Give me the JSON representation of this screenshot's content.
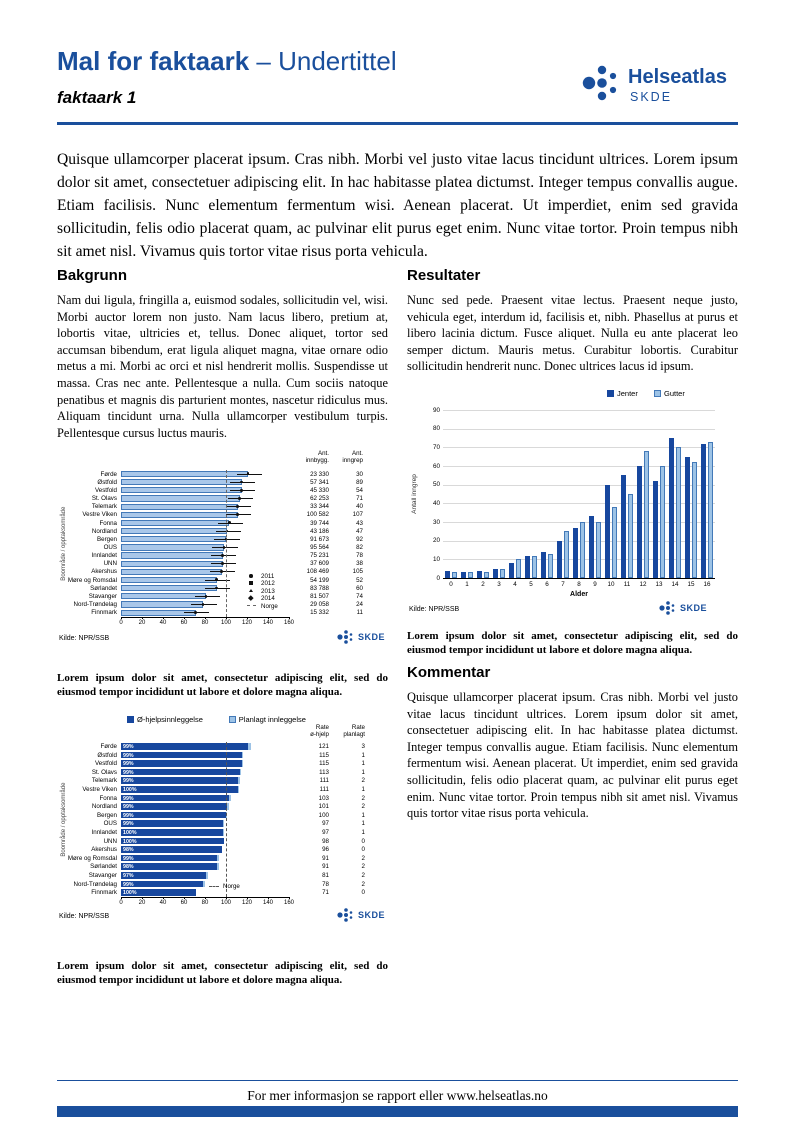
{
  "page": {
    "title_bold": "Mal for faktaark",
    "title_rest": " – Undertittel",
    "subtitle": "faktaark 1",
    "logo": {
      "brand": "Helseatlas",
      "org": "SKDE"
    },
    "footer": "For mer informasjon se rapport eller www.helseatlas.no"
  },
  "intro": "Quisque ullamcorper placerat ipsum. Cras nibh. Morbi vel justo vitae lacus tincidunt ultrices. Lorem ipsum dolor sit amet, consectetuer adipiscing elit. In hac habitasse platea dictumst. Integer tempus convallis augue. Etiam facilisis. Nunc elementum fermentum wisi. Aenean placerat. Ut imperdiet, enim sed gravida sollicitudin, felis odio placerat quam, ac pulvinar elit purus eget enim. Nunc vitae tortor. Proin tempus nibh sit amet nisl. Vivamus quis tortor vitae risus porta vehicula.",
  "sections": {
    "bakgrunn": {
      "heading": "Bakgrunn",
      "body": "Nam dui ligula, fringilla a, euismod sodales, sollicitudin vel, wisi. Morbi auctor lorem non justo. Nam lacus libero, pretium at, lobortis vitae, ultricies et, tellus. Donec aliquet, tortor sed accumsan bibendum, erat ligula aliquet magna, vitae ornare odio metus a mi. Morbi ac orci et nisl hendrerit mollis. Suspendisse ut massa. Cras nec ante. Pellentesque a nulla. Cum sociis natoque penatibus et magnis dis parturient montes, nascetur ridiculus mus. Aliquam tincidunt urna. Nulla ullamcorper vestibulum turpis. Pellentesque cursus luctus mauris."
    },
    "resultater": {
      "heading": "Resultater",
      "body": "Nunc sed pede. Praesent vitae lectus. Praesent neque justo, vehicula eget, interdum id, facilisis et, nibh. Phasellus at purus et libero lacinia dictum. Fusce aliquet. Nulla eu ante placerat leo semper dictum. Mauris metus. Curabitur lobortis. Curabitur sollicitudin hendrerit nunc. Donec ultrices lacus id ipsum."
    },
    "kommentar": {
      "heading": "Kommentar",
      "body": "Quisque ullamcorper placerat ipsum. Cras nibh. Morbi vel justo vitae lacus tincidunt ultrices. Lorem ipsum dolor sit amet, consectetuer adipiscing elit. In hac habitasse platea dictumst. Integer tempus convallis augue. Etiam facilisis. Nunc elementum fermentum wisi. Aenean placerat. Ut imperdiet, enim sed gravida sollicitudin, felis odio placerat quam, ac pulvinar elit purus eget enim. Nunc vitae tortor. Proin tempus nibh sit amet nisl. Vivamus quis tortor vitae risus porta vehicula."
    }
  },
  "captions": {
    "chart1": "Lorem ipsum dolor sit amet, consectetur adipiscing elit, sed do eiusmod tempor incididunt ut labore et dolore magna aliqua.",
    "chart2": "Lorem ipsum dolor sit amet, consectetur adipiscing elit, sed do eiusmod tempor incididunt ut labore et dolore magna aliqua.",
    "chart3": "Lorem ipsum dolor sit amet, consectetur adipiscing elit, sed do eiusmod tempor incididunt ut labore et dolore magna aliqua."
  },
  "colors": {
    "brand": "#1A4F9C",
    "bar_dark": "#17479E",
    "bar_light": "#A9C7E9",
    "bar_light2": "#9DC3E6",
    "bar_border": "#4379B8"
  },
  "chart_data": [
    {
      "type": "bar",
      "orientation": "horizontal",
      "ylabel": "Boområde / opptaksområde",
      "xlim": [
        0,
        160
      ],
      "xticks": [
        0,
        20,
        40,
        60,
        80,
        100,
        120,
        140,
        160
      ],
      "col_headers": [
        "Ant.\ninnbygg.",
        "Ant.\ninngrep"
      ],
      "legend": [
        "2011",
        "2012",
        "2013",
        "2014",
        "Norge"
      ],
      "norge_ref": 100,
      "source": "Kilde: NPR/SSB",
      "rows": [
        {
          "label": "Førde",
          "rate": 121,
          "innbygg": "23 330",
          "inngrep": "30"
        },
        {
          "label": "Østfold",
          "rate": 115,
          "innbygg": "57 341",
          "inngrep": "89"
        },
        {
          "label": "Vestfold",
          "rate": 115,
          "innbygg": "45 330",
          "inngrep": "54"
        },
        {
          "label": "St. Olavs",
          "rate": 113,
          "innbygg": "62 253",
          "inngrep": "71"
        },
        {
          "label": "Telemark",
          "rate": 111,
          "innbygg": "33 344",
          "inngrep": "40"
        },
        {
          "label": "Vestre Viken",
          "rate": 111,
          "innbygg": "100 582",
          "inngrep": "107"
        },
        {
          "label": "Fonna",
          "rate": 103,
          "innbygg": "39 744",
          "inngrep": "43"
        },
        {
          "label": "Nordland",
          "rate": 101,
          "innbygg": "43 186",
          "inngrep": "47"
        },
        {
          "label": "Bergen",
          "rate": 100,
          "innbygg": "91 673",
          "inngrep": "92"
        },
        {
          "label": "OUS",
          "rate": 98,
          "innbygg": "95 564",
          "inngrep": "82"
        },
        {
          "label": "Innlandet",
          "rate": 97,
          "innbygg": "75 231",
          "inngrep": "78"
        },
        {
          "label": "UNN",
          "rate": 97,
          "innbygg": "37 609",
          "inngrep": "38"
        },
        {
          "label": "Akershus",
          "rate": 96,
          "innbygg": "108 469",
          "inngrep": "105"
        },
        {
          "label": "Møre og Romsdal",
          "rate": 91,
          "innbygg": "54 199",
          "inngrep": "52"
        },
        {
          "label": "Sørlandet",
          "rate": 91,
          "innbygg": "83 788",
          "inngrep": "60"
        },
        {
          "label": "Stavanger",
          "rate": 81,
          "innbygg": "81 507",
          "inngrep": "74"
        },
        {
          "label": "Nord-Trøndelag",
          "rate": 78,
          "innbygg": "29 058",
          "inngrep": "24"
        },
        {
          "label": "Finnmark",
          "rate": 71,
          "innbygg": "15 332",
          "inngrep": "11"
        }
      ]
    },
    {
      "type": "bar",
      "categories": [
        "0",
        "1",
        "2",
        "3",
        "4",
        "5",
        "6",
        "7",
        "8",
        "9",
        "10",
        "11",
        "12",
        "13",
        "14",
        "15",
        "16"
      ],
      "series": [
        {
          "name": "Jenter",
          "values": [
            4,
            3,
            4,
            5,
            8,
            12,
            14,
            20,
            27,
            33,
            50,
            55,
            60,
            52,
            75,
            65,
            72
          ]
        },
        {
          "name": "Gutter",
          "values": [
            3,
            3,
            3,
            5,
            10,
            12,
            13,
            25,
            30,
            30,
            38,
            45,
            68,
            60,
            70,
            62,
            73
          ]
        }
      ],
      "xlabel": "Alder",
      "ylabel": "Antall inngrep",
      "ylim": [
        0,
        90
      ],
      "yticks": [
        0,
        10,
        20,
        30,
        40,
        50,
        60,
        70,
        80,
        90
      ],
      "grid": true,
      "legend_position": "top-right",
      "source": "Kilde: NPR/SSB"
    },
    {
      "type": "bar",
      "orientation": "horizontal",
      "stacked": true,
      "legend": [
        "Ø-hjelpsinnleggelse",
        "Planlagt innleggelse"
      ],
      "ylabel": "Boområde / opptaksområde",
      "xlim": [
        0,
        160
      ],
      "xticks": [
        0,
        20,
        40,
        60,
        80,
        100,
        120,
        140,
        160
      ],
      "col_headers": [
        "Rate\nø-hjelp",
        "Rate\nplanlagt"
      ],
      "norge_label": "Norge",
      "norge_ref": 100,
      "source": "Kilde: NPR/SSB",
      "rows": [
        {
          "label": "Førde",
          "pct": "99%",
          "ohjelp": 121,
          "planlagt": 3
        },
        {
          "label": "Østfold",
          "pct": "99%",
          "ohjelp": 115,
          "planlagt": 1
        },
        {
          "label": "Vestfold",
          "pct": "99%",
          "ohjelp": 115,
          "planlagt": 1
        },
        {
          "label": "St. Olavs",
          "pct": "99%",
          "ohjelp": 113,
          "planlagt": 1
        },
        {
          "label": "Telemark",
          "pct": "99%",
          "ohjelp": 111,
          "planlagt": 2
        },
        {
          "label": "Vestre Viken",
          "pct": "100%",
          "ohjelp": 111,
          "planlagt": 1
        },
        {
          "label": "Fonna",
          "pct": "99%",
          "ohjelp": 103,
          "planlagt": 2
        },
        {
          "label": "Nordland",
          "pct": "99%",
          "ohjelp": 101,
          "planlagt": 2
        },
        {
          "label": "Bergen",
          "pct": "99%",
          "ohjelp": 100,
          "planlagt": 1
        },
        {
          "label": "OUS",
          "pct": "99%",
          "ohjelp": 97,
          "planlagt": 1
        },
        {
          "label": "Innlandet",
          "pct": "100%",
          "ohjelp": 97,
          "planlagt": 1
        },
        {
          "label": "UNN",
          "pct": "100%",
          "ohjelp": 98,
          "planlagt": 0
        },
        {
          "label": "Akershus",
          "pct": "98%",
          "ohjelp": 96,
          "planlagt": 0
        },
        {
          "label": "Møre og Romsdal",
          "pct": "99%",
          "ohjelp": 91,
          "planlagt": 2
        },
        {
          "label": "Sørlandet",
          "pct": "98%",
          "ohjelp": 91,
          "planlagt": 2
        },
        {
          "label": "Stavanger",
          "pct": "97%",
          "ohjelp": 81,
          "planlagt": 2
        },
        {
          "label": "Nord-Trøndelag",
          "pct": "99%",
          "ohjelp": 78,
          "planlagt": 2
        },
        {
          "label": "Finnmark",
          "pct": "100%",
          "ohjelp": 71,
          "planlagt": 0
        }
      ]
    }
  ]
}
